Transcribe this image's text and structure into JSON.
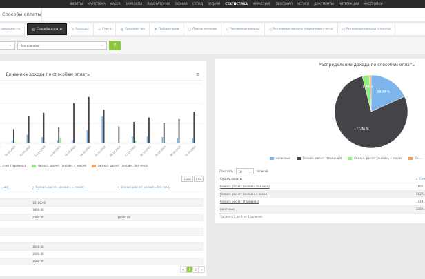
{
  "topnav": [
    "ВИЗИТЫ",
    "КАРТОТЕКА",
    "КАССА",
    "ЗАРПЛАТЫ",
    "ЛАБОРАТОРИИ",
    "ЗВОНКИ",
    "СКЛАД",
    "ЗАДАЧИ",
    "СТАТИСТИКА",
    "МАРКЕТИНГ",
    "ПЕРСОНАЛ",
    "УСЛУГИ",
    "ДОКУМЕНТЫ",
    "ИНТЕГРАЦИИ",
    "НАСТРОЙКИ"
  ],
  "topnav_active": "СТАТИСТИКА",
  "breadcrumb": "Способы оплаты",
  "tabs": [
    {
      "label": "…циальности",
      "icon": ""
    },
    {
      "label": "Способы оплаты",
      "icon": "calendar-icon",
      "active": true
    },
    {
      "label": "Расходы",
      "icon": "upload-icon"
    },
    {
      "label": "Счета",
      "icon": "list-icon"
    },
    {
      "label": "Средний чек",
      "icon": "receipt-icon"
    },
    {
      "label": "Лаборатории",
      "icon": "flask-icon"
    },
    {
      "label": "Планы лечения",
      "icon": "clipboard-icon"
    },
    {
      "label": "Рекламные каналы",
      "icon": "megaphone-icon"
    },
    {
      "label": "Рекламные каналы (первичные счета)",
      "icon": "megaphone-icon"
    },
    {
      "label": "Рекламные каналы (оплаты)",
      "icon": "megaphone-icon"
    }
  ],
  "filters": {
    "clinic": "Все клиники"
  },
  "colors": {
    "cash": "#7cb5ec",
    "terminal": "#434348",
    "online_check": "#90ed7d",
    "online_nocheck": "#f7a35c",
    "accent": "#8cc63f"
  },
  "chart_data": [
    {
      "type": "bar",
      "title": "Динамика дохода по способам оплаты",
      "categories": [
        "18.10.2022",
        "19.10.2022",
        "20.10.2022",
        "21.10.2022",
        "22.10.2022",
        "23.10.2022",
        "24.10.2022",
        "25.10.2022",
        "26.10.2022",
        "27.10.2022",
        "28.10.2022",
        "29.10.2022",
        "30.10.2022",
        "31.10.2022"
      ],
      "ylim": [
        0,
        30000
      ],
      "grid": true,
      "legend": "bottom",
      "series": [
        {
          "name": "наличные",
          "values": [
            2500,
            1500,
            4300,
            3100,
            1600,
            1600,
            6700,
            13400,
            300,
            3400,
            3300,
            3100,
            2500,
            2500
          ]
        },
        {
          "name": "безнал. расчет (терминал)",
          "values": [
            21300,
            7100,
            13800,
            15300,
            8000,
            20100,
            23200,
            16900,
            8400,
            10700,
            12900,
            10300,
            12100,
            15700
          ]
        },
        {
          "name": "безнал. расчет (онлайн, с чеком)",
          "values": [
            0,
            600,
            500,
            600,
            2900,
            0,
            300,
            0,
            0,
            1400,
            0,
            300,
            0,
            0
          ]
        },
        {
          "name": "безнал. расчет (онлайн, без чека)",
          "values": [
            0,
            0,
            0,
            0,
            0,
            0,
            0,
            0,
            0,
            0,
            0,
            0,
            0,
            0
          ]
        }
      ]
    },
    {
      "type": "pie",
      "title": "Распределение дохода по способам оплаты",
      "legend": "bottom",
      "slices": [
        {
          "name": "наличные",
          "value": 18.24,
          "label": "18.24 %"
        },
        {
          "name": "безнал. расчет (терминал)",
          "value": 77.84,
          "label": "77.84 %"
        },
        {
          "name": "безнал. расчет (онлайн, с чеком)",
          "value": 3.08,
          "label": "3.08 %"
        },
        {
          "name": "безнал. расчет (онлайн, без чека)",
          "value": 0.84,
          "label": ""
        }
      ]
    }
  ],
  "legend_left": [
    "…счет (терминал)",
    "безнал. расчет (онлайн, с чеком)",
    "безнал. расчет (онлайн, без чека)"
  ],
  "legend_right": [
    "наличные",
    "безнал. расчет (терминал)",
    "безнал. расчет (онлайн, с чеком)",
    "без…"
  ],
  "export": {
    "excel": "Excel",
    "csv": "CSV"
  },
  "left_table": {
    "headers": [
      "…ал)",
      "безнал. расчет (онлайн, с чеком)",
      "безнал. расчет (онлайн, без чека)"
    ],
    "rows": [
      [
        "",
        "",
        ""
      ],
      [
        "",
        "10100.00",
        ""
      ],
      [
        "",
        "1800.00",
        ""
      ],
      [
        "",
        "2000.00",
        "19500.00"
      ],
      [
        "",
        "",
        ""
      ],
      [
        "",
        "",
        ""
      ],
      [
        "",
        "",
        ""
      ],
      [
        "",
        "3600.00",
        ""
      ],
      [
        "",
        "3600.00",
        ""
      ],
      [
        "",
        "3600.00",
        ""
      ]
    ]
  },
  "pager": [
    "«",
    "1",
    "2",
    "»"
  ],
  "right_table": {
    "show_label": "Показать",
    "show_value": "10",
    "entries_label": "записей",
    "headers": [
      "Способ оплаты",
      "Сумм…"
    ],
    "rows": [
      [
        "безнал. расчет (онлайн, без чека)",
        "1960…"
      ],
      [
        "безнал. расчет (онлайн, с чеком)",
        "5627…"
      ],
      [
        "безнал. расчет (терминал)",
        "1429…"
      ],
      [
        "наличные",
        "3359…"
      ]
    ],
    "info": "Записи с 1 до 4 из 4 записей"
  }
}
